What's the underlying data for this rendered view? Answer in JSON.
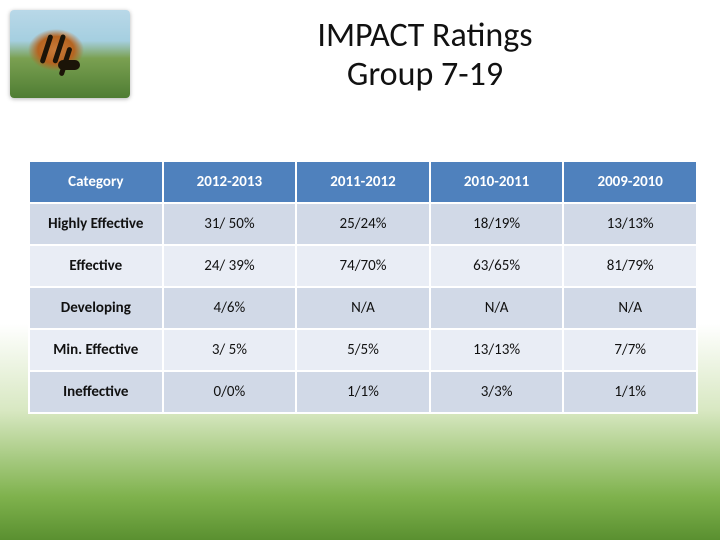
{
  "title": {
    "line1": "IMPACT Ratings",
    "line2": "Group 7-19"
  },
  "image": {
    "alt": "tiger-thumbnail"
  },
  "table": {
    "columns": [
      "Category",
      "2012-2013",
      "2011-2012",
      "2010-2011",
      "2009-2010"
    ],
    "rows": [
      {
        "label": "Highly Effective",
        "cells": [
          "31/ 50%",
          "25/24%",
          "18/19%",
          "13/13%"
        ]
      },
      {
        "label": "Effective",
        "cells": [
          "24/ 39%",
          "74/70%",
          "63/65%",
          "81/79%"
        ]
      },
      {
        "label": "Developing",
        "cells": [
          "4/6%",
          "N/A",
          "N/A",
          "N/A"
        ]
      },
      {
        "label": "Min. Effective",
        "cells": [
          "3/ 5%",
          "5/5%",
          "13/13%",
          "7/7%"
        ]
      },
      {
        "label": "Ineffective",
        "cells": [
          "0/0%",
          "1/1%",
          "3/3%",
          "1/1%"
        ]
      }
    ],
    "header_bg": "#4f81bd",
    "row_band_colors": [
      "#d1d9e7",
      "#e9edf5"
    ],
    "border_color": "#ffffff"
  }
}
